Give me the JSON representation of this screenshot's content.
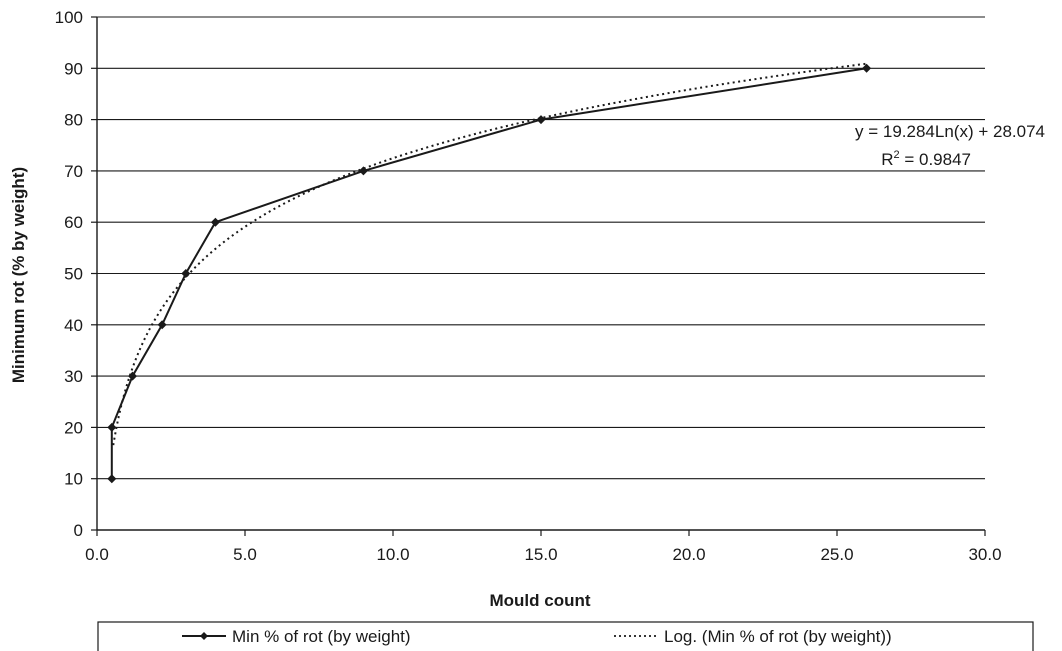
{
  "chart_data": {
    "type": "line",
    "xlabel": "Mould count",
    "ylabel": "Minimum rot (% by weight)",
    "xlim": [
      0,
      30
    ],
    "ylim": [
      0,
      100
    ],
    "x_ticks": [
      "0.0",
      "5.0",
      "10.0",
      "15.0",
      "20.0",
      "25.0",
      "30.0"
    ],
    "y_ticks": [
      "0",
      "10",
      "20",
      "30",
      "40",
      "50",
      "60",
      "70",
      "80",
      "90",
      "100"
    ],
    "grid": "horizontal",
    "legend_position": "bottom",
    "series": [
      {
        "name": "Min % of rot (by weight)",
        "style": "solid-with-diamond-markers",
        "color": "#1a1a1a",
        "x": [
          0.5,
          0.5,
          1.2,
          2.2,
          3.0,
          4.0,
          9.0,
          15.0,
          26.0
        ],
        "y": [
          10,
          20,
          30,
          40,
          50,
          60,
          70,
          80,
          90
        ]
      },
      {
        "name": "Log. (Min % of rot (by weight))",
        "style": "dotted-trendline",
        "color": "#1a1a1a",
        "trend": {
          "type": "logarithmic",
          "a": 19.284,
          "b": 28.074,
          "x_from": 0.55,
          "x_to": 26.0
        }
      }
    ],
    "annotation": {
      "equation": "y = 19.284Ln(x) + 28.074",
      "r_squared_prefix": "R",
      "r_squared_sup": "2",
      "r_squared_value": " = 0.9847"
    }
  }
}
